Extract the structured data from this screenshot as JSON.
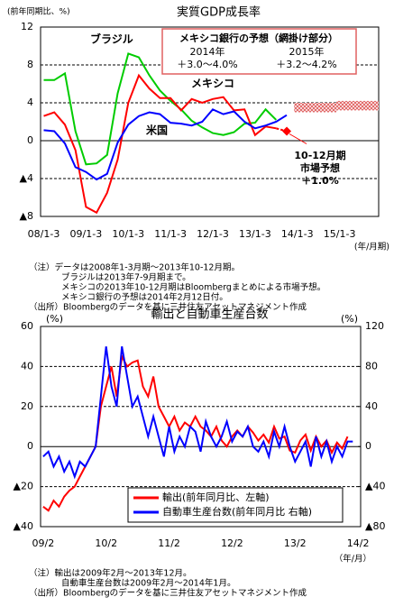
{
  "chart_data": [
    {
      "type": "line",
      "title": "実質GDP成長率",
      "y_label": "(前年同期比、%)",
      "x_label": "(年/月期)",
      "categories": [
        "08/1-3",
        null,
        null,
        null,
        "09/1-3",
        null,
        null,
        null,
        "10/1-3",
        null,
        null,
        null,
        "11/1-3",
        null,
        null,
        null,
        "12/1-3",
        null,
        null,
        null,
        "13/1-3",
        null,
        null,
        null,
        "14/1-3",
        null,
        null,
        null,
        "15/1-3",
        null,
        null,
        null
      ],
      "ylim": [
        -8,
        12
      ],
      "yticks": [
        12,
        8,
        4,
        0,
        {
          "value": -4,
          "label": "▲4"
        },
        {
          "value": -8,
          "label": "▲8"
        }
      ],
      "grid": true,
      "series": [
        {
          "name": "ブラジル",
          "color": "#00cc00",
          "values": [
            6.4,
            6.4,
            7.1,
            1.0,
            -2.5,
            -2.4,
            -1.5,
            5.0,
            9.2,
            8.8,
            6.9,
            5.3,
            4.2,
            3.3,
            2.1,
            1.4,
            0.8,
            0.6,
            0.9,
            1.8,
            1.9,
            3.3,
            2.2,
            null,
            null,
            null,
            null,
            null,
            null,
            null,
            null,
            null
          ]
        },
        {
          "name": "メキシコ",
          "color": "#ff0000",
          "values": [
            2.6,
            3.0,
            1.7,
            -1.0,
            -7.0,
            -7.6,
            -5.5,
            -2.0,
            4.0,
            6.9,
            5.5,
            4.5,
            4.5,
            3.2,
            4.4,
            4.0,
            4.4,
            4.6,
            3.2,
            3.3,
            0.6,
            1.5,
            1.3,
            1.0,
            null,
            null,
            null,
            null,
            null,
            null,
            null,
            null
          ]
        },
        {
          "name": "米国",
          "color": "#0000ff",
          "values": [
            1.1,
            1.0,
            -0.3,
            -2.8,
            -3.3,
            -4.1,
            -3.5,
            -0.2,
            1.7,
            2.6,
            3.0,
            2.8,
            1.9,
            1.8,
            1.6,
            2.0,
            3.3,
            2.8,
            3.1,
            2.0,
            1.3,
            1.6,
            2.0,
            2.7,
            null,
            null,
            null,
            null,
            null,
            null,
            null,
            null
          ]
        }
      ],
      "bank_forecast": {
        "title": "メキシコ銀行の予想（網掛け部分）",
        "color": "#e06060",
        "periods": [
          {
            "label": "2014年",
            "range_label": "＋3.0～4.0%",
            "low": 3.0,
            "high": 4.0
          },
          {
            "label": "2015年",
            "range_label": "＋3.2～4.2%",
            "low": 3.2,
            "high": 4.2
          }
        ]
      },
      "market_forecast": {
        "color": "#ff0000",
        "texts": [
          "10-12月期",
          "市場予想",
          "＋1.0%"
        ]
      },
      "notes": [
        "（注）データは2008年1-3月期～2013年10-12月期。",
        "ブラジルは2013年7-9月期まで。",
        "メキシコの2013年10-12月期はBloombergまとめによる市場予想。",
        "メキシコ銀行の予想は2014年2月12日付。",
        "（出所）Bloombergのデータを基に三井住友アセットマネジメント作成"
      ]
    },
    {
      "type": "line",
      "title": "輸出と自動車生産台数",
      "y_label": "(%)",
      "y2_label": "(%)",
      "x_label": "（年/月）",
      "categories": [
        "09/2",
        null,
        null,
        null,
        null,
        null,
        null,
        null,
        null,
        null,
        null,
        null,
        "10/2",
        null,
        null,
        null,
        null,
        null,
        null,
        null,
        null,
        null,
        null,
        null,
        "11/2",
        null,
        null,
        null,
        null,
        null,
        null,
        null,
        null,
        null,
        null,
        null,
        "12/2",
        null,
        null,
        null,
        null,
        null,
        null,
        null,
        null,
        null,
        null,
        null,
        "13/2",
        null,
        null,
        null,
        null,
        null,
        null,
        null,
        null,
        null,
        null,
        null,
        "14/2"
      ],
      "ylim": [
        -40,
        60
      ],
      "yticks": [
        60,
        40,
        20,
        0,
        {
          "value": -20,
          "label": "▲20"
        },
        {
          "value": -40,
          "label": "▲40"
        }
      ],
      "y2lim": [
        -80,
        120
      ],
      "y2ticks": [
        120,
        80,
        40,
        0,
        {
          "value": -40,
          "label": "▲40"
        },
        {
          "value": -80,
          "label": "▲80"
        }
      ],
      "grid": true,
      "series": [
        {
          "name": "輸出(前年同月比、左軸)",
          "color": "#ff0000",
          "values": [
            -30,
            -32,
            -27,
            -30,
            -25,
            -22,
            -20,
            -15,
            -10,
            -5,
            0,
            20,
            30,
            40,
            25,
            45,
            40,
            42,
            43,
            30,
            25,
            35,
            20,
            15,
            10,
            15,
            8,
            12,
            10,
            15,
            10,
            8,
            5,
            10,
            3,
            0,
            5,
            8,
            5,
            10,
            7,
            3,
            6,
            2,
            10,
            4,
            5,
            -2,
            -3,
            3,
            6,
            -2,
            5,
            0,
            3,
            -3,
            2,
            -1,
            5,
            null,
            null
          ]
        },
        {
          "name": "自動車生産台数(前年同月比 右軸)",
          "color": "#0000ff",
          "axis": "y2",
          "values": [
            -10,
            -5,
            -20,
            -10,
            -25,
            -15,
            -30,
            -15,
            -20,
            -10,
            0,
            50,
            100,
            60,
            40,
            100,
            70,
            40,
            50,
            30,
            10,
            30,
            10,
            -10,
            20,
            -5,
            10,
            0,
            20,
            15,
            -5,
            25,
            10,
            0,
            10,
            25,
            5,
            15,
            10,
            20,
            0,
            -5,
            5,
            -10,
            15,
            0,
            20,
            0,
            -15,
            -5,
            5,
            -20,
            10,
            -10,
            5,
            -15,
            0,
            -10,
            5,
            5,
            null
          ]
        }
      ],
      "notes": [
        "（注）輸出は2009年2月～2013年12月。",
        "自動車生産台数は2009年2月～2014年1月。",
        "（出所）Bloombergのデータを基に三井住友アセットマネジメント作成"
      ]
    }
  ]
}
